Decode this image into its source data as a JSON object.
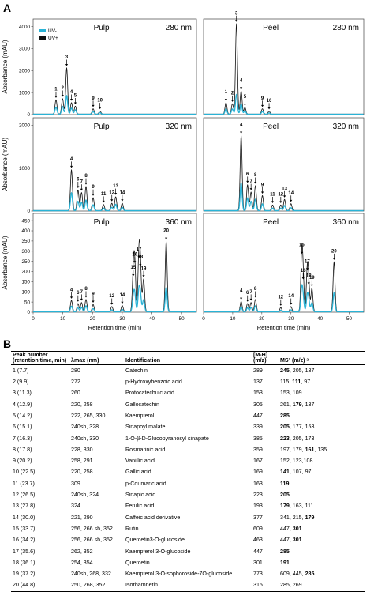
{
  "figure": {
    "panel_a_label": "A",
    "panel_b_label": "B"
  },
  "chart_data": {
    "type": "line",
    "y_axis_label": "Absorbance (mAU)",
    "x_axis_label": "Retention time (min)",
    "x_ticks": [
      "0",
      "10",
      "20",
      "30",
      "40",
      "50"
    ],
    "legend": [
      {
        "name": "UV-",
        "color": "#2ab3d6"
      },
      {
        "name": "UV+",
        "color": "#111111"
      }
    ],
    "panels": [
      {
        "title": "Pulp",
        "wavelength": "280 nm",
        "y_ticks": [
          "0",
          "1000",
          "2000",
          "3000",
          "4000"
        ],
        "ymax": 4200,
        "peaks": [
          {
            "label": "1",
            "x": 7.7,
            "uv_plus": 650,
            "uv_minus": 330
          },
          {
            "label": "2",
            "x": 9.9,
            "uv_plus": 700,
            "uv_minus": 360
          },
          {
            "label": "3",
            "x": 11.3,
            "uv_plus": 2100,
            "uv_minus": 850
          },
          {
            "label": "4",
            "x": 12.9,
            "uv_plus": 520,
            "uv_minus": 280
          },
          {
            "label": "5",
            "x": 14.2,
            "uv_plus": 360,
            "uv_minus": 200
          },
          {
            "label": "9",
            "x": 20.2,
            "uv_plus": 240,
            "uv_minus": 120
          },
          {
            "label": "10",
            "x": 22.5,
            "uv_plus": 140,
            "uv_minus": 70
          }
        ]
      },
      {
        "title": "Peel",
        "wavelength": "280 nm",
        "y_ticks": [
          "0",
          "1000",
          "2000",
          "3000",
          "4000"
        ],
        "ymax": 4200,
        "peaks": [
          {
            "label": "1",
            "x": 7.7,
            "uv_plus": 520,
            "uv_minus": 250
          },
          {
            "label": "2",
            "x": 9.9,
            "uv_plus": 470,
            "uv_minus": 240
          },
          {
            "label": "3",
            "x": 11.3,
            "uv_plus": 4100,
            "uv_minus": 900
          },
          {
            "label": "4",
            "x": 12.9,
            "uv_plus": 1050,
            "uv_minus": 480
          },
          {
            "label": "5",
            "x": 14.2,
            "uv_plus": 300,
            "uv_minus": 160
          },
          {
            "label": "9",
            "x": 20.2,
            "uv_plus": 240,
            "uv_minus": 120
          },
          {
            "label": "10",
            "x": 22.5,
            "uv_plus": 130,
            "uv_minus": 60
          }
        ]
      },
      {
        "title": "Pulp",
        "wavelength": "320 nm",
        "y_ticks": [
          "0",
          "1000",
          "2000"
        ],
        "ymax": 2100,
        "peaks": [
          {
            "label": "4",
            "x": 12.9,
            "uv_plus": 950,
            "uv_minus": 420
          },
          {
            "label": "6",
            "x": 15.1,
            "uv_plus": 480,
            "uv_minus": 220
          },
          {
            "label": "7",
            "x": 16.3,
            "uv_plus": 420,
            "uv_minus": 200
          },
          {
            "label": "8",
            "x": 17.8,
            "uv_plus": 560,
            "uv_minus": 250
          },
          {
            "label": "9",
            "x": 20.2,
            "uv_plus": 300,
            "uv_minus": 140
          },
          {
            "label": "11",
            "x": 23.7,
            "uv_plus": 140,
            "uv_minus": 60
          },
          {
            "label": "12",
            "x": 26.5,
            "uv_plus": 170,
            "uv_minus": 80
          },
          {
            "label": "13",
            "x": 27.8,
            "uv_plus": 320,
            "uv_minus": 150
          },
          {
            "label": "14",
            "x": 30.0,
            "uv_plus": 170,
            "uv_minus": 80
          }
        ]
      },
      {
        "title": "Peel",
        "wavelength": "320 nm",
        "y_ticks": [
          "0",
          "1000",
          "2000"
        ],
        "ymax": 2100,
        "peaks": [
          {
            "label": "4",
            "x": 12.9,
            "uv_plus": 1750,
            "uv_minus": 650
          },
          {
            "label": "6",
            "x": 15.1,
            "uv_plus": 600,
            "uv_minus": 300
          },
          {
            "label": "7",
            "x": 16.3,
            "uv_plus": 430,
            "uv_minus": 220
          },
          {
            "label": "8",
            "x": 17.8,
            "uv_plus": 580,
            "uv_minus": 270
          },
          {
            "label": "9",
            "x": 20.2,
            "uv_plus": 350,
            "uv_minus": 160
          },
          {
            "label": "11",
            "x": 23.7,
            "uv_plus": 130,
            "uv_minus": 60
          },
          {
            "label": "12",
            "x": 26.5,
            "uv_plus": 130,
            "uv_minus": 60
          },
          {
            "label": "13",
            "x": 27.8,
            "uv_plus": 260,
            "uv_minus": 120
          },
          {
            "label": "14",
            "x": 30.0,
            "uv_plus": 160,
            "uv_minus": 70
          }
        ]
      },
      {
        "title": "Pulp",
        "wavelength": "360 nm",
        "y_ticks": [
          "0",
          "50",
          "100",
          "150",
          "200",
          "250",
          "300",
          "350",
          "400",
          "450"
        ],
        "ymax": 470,
        "peaks": [
          {
            "label": "4",
            "x": 12.9,
            "uv_plus": 55,
            "uv_minus": 28
          },
          {
            "label": "6",
            "x": 15.1,
            "uv_plus": 40,
            "uv_minus": 20
          },
          {
            "label": "7",
            "x": 16.3,
            "uv_plus": 45,
            "uv_minus": 22
          },
          {
            "label": "8",
            "x": 17.8,
            "uv_plus": 60,
            "uv_minus": 30
          },
          {
            "label": "9",
            "x": 20.2,
            "uv_plus": 35,
            "uv_minus": 16
          },
          {
            "label": "12",
            "x": 26.5,
            "uv_plus": 25,
            "uv_minus": 10
          },
          {
            "label": "14",
            "x": 30.0,
            "uv_plus": 30,
            "uv_minus": 12
          },
          {
            "label": "15",
            "x": 33.7,
            "uv_plus": 165,
            "uv_minus": 60
          },
          {
            "label": "16",
            "x": 34.2,
            "uv_plus": 230,
            "uv_minus": 85
          },
          {
            "label": "17",
            "x": 35.6,
            "uv_plus": 255,
            "uv_minus": 95
          },
          {
            "label": "18",
            "x": 36.1,
            "uv_plus": 215,
            "uv_minus": 80
          },
          {
            "label": "19",
            "x": 37.2,
            "uv_plus": 160,
            "uv_minus": 60
          },
          {
            "label": "20",
            "x": 44.8,
            "uv_plus": 345,
            "uv_minus": 120
          }
        ]
      },
      {
        "title": "Peel",
        "wavelength": "360 nm",
        "y_ticks": [
          "0",
          "50",
          "100",
          "150",
          "200",
          "250",
          "300",
          "350",
          "400",
          "450"
        ],
        "ymax": 470,
        "peaks": [
          {
            "label": "4",
            "x": 12.9,
            "uv_plus": 50,
            "uv_minus": 25
          },
          {
            "label": "6",
            "x": 15.1,
            "uv_plus": 40,
            "uv_minus": 20
          },
          {
            "label": "7",
            "x": 16.3,
            "uv_plus": 45,
            "uv_minus": 22
          },
          {
            "label": "8",
            "x": 17.8,
            "uv_plus": 60,
            "uv_minus": 30
          },
          {
            "label": "12",
            "x": 26.5,
            "uv_plus": 20,
            "uv_minus": 8
          },
          {
            "label": "14",
            "x": 30.0,
            "uv_plus": 25,
            "uv_minus": 10
          },
          {
            "label": "15",
            "x": 33.7,
            "uv_plus": 275,
            "uv_minus": 110
          },
          {
            "label": "16",
            "x": 34.2,
            "uv_plus": 150,
            "uv_minus": 60
          },
          {
            "label": "17",
            "x": 35.6,
            "uv_plus": 195,
            "uv_minus": 75
          },
          {
            "label": "18",
            "x": 36.1,
            "uv_plus": 125,
            "uv_minus": 50
          },
          {
            "label": "19",
            "x": 37.2,
            "uv_plus": 115,
            "uv_minus": 45
          },
          {
            "label": "20",
            "x": 44.8,
            "uv_plus": 245,
            "uv_minus": 95
          }
        ]
      }
    ]
  },
  "table": {
    "headers": {
      "peak": "Peak number",
      "peak_sub": "(retention time, min)",
      "lambda": "λmax (nm)",
      "identification": "Identification",
      "mh": "[M-H]",
      "mh_sub": "(m/z)",
      "ms2": "MS² (m/z) ᵃ"
    },
    "rows": [
      {
        "peak": "1 (7.7)",
        "lambda": "280",
        "id": "Catechin",
        "mh": "289",
        "ms_bold": "245",
        "ms_rest": ", 205, 137"
      },
      {
        "peak": "2 (9.9)",
        "lambda": "272",
        "id": "p-Hydroxybenzoic acid",
        "mh": "137",
        "ms_pre": "115, ",
        "ms_bold": "111",
        "ms_rest": ", 97"
      },
      {
        "peak": "3 (11.3)",
        "lambda": "260",
        "id": "Protocatechuic acid",
        "mh": "153",
        "ms_rest": "153, 109"
      },
      {
        "peak": "4 (12.9)",
        "lambda": "220, 258",
        "id": "Gallocatechin",
        "mh": "305",
        "ms_pre": "261, ",
        "ms_bold": "179",
        "ms_rest": ", 137"
      },
      {
        "peak": "5 (14.2)",
        "lambda": "222, 265, 330",
        "id": "Kaempferol",
        "mh": "447",
        "ms_bold": "285"
      },
      {
        "peak": "6 (15.1)",
        "lambda": "240sh, 328",
        "id": "Sinapoyl malate",
        "mh": "339",
        "ms_bold": "205",
        "ms_rest": ", 177, 153"
      },
      {
        "peak": "7 (16.3)",
        "lambda": "240sh, 330",
        "id": "1-O-β-D-Glucopyranosyl sinapate",
        "mh": "385",
        "ms_bold": "223",
        "ms_rest": ", 205, 173"
      },
      {
        "peak": "8 (17.8)",
        "lambda": "228, 330",
        "id": "Rosmarinic acid",
        "mh": "359",
        "ms_pre": "197, 179, ",
        "ms_bold": "161",
        "ms_rest": ", 135"
      },
      {
        "peak": "9 (20.2)",
        "lambda": "258, 291",
        "id": "Vanillic acid",
        "mh": "167",
        "ms_rest": "152, 123,108"
      },
      {
        "peak": "10 (22.5)",
        "lambda": "220, 258",
        "id": "Gallic acid",
        "mh": "169",
        "ms_bold": "141",
        "ms_rest": ", 107, 97"
      },
      {
        "peak": "11 (23.7)",
        "lambda": "309",
        "id": "p-Coumaric acid",
        "mh": "163",
        "ms_bold": "119"
      },
      {
        "peak": "12 (26.5)",
        "lambda": "240sh, 324",
        "id": "Sinapic acid",
        "mh": "223",
        "ms_bold": "205"
      },
      {
        "peak": "13 (27.8)",
        "lambda": "324",
        "id": "Ferulic acid",
        "mh": "193",
        "ms_bold": "179",
        "ms_rest": ", 163, 111"
      },
      {
        "peak": "14 (30.0)",
        "lambda": "221, 290",
        "id": "Caffeic acid derivative",
        "mh": "377",
        "ms_pre": "341, 215, ",
        "ms_bold": "179"
      },
      {
        "peak": "15 (33.7)",
        "lambda": "256, 266 sh, 352",
        "id": "Rutin",
        "mh": "609",
        "ms_pre": "447, ",
        "ms_bold": "301"
      },
      {
        "peak": "16 (34.2)",
        "lambda": "256, 266 sh, 352",
        "id": "Quercetin3-O-glucoside",
        "mh": "463",
        "ms_pre": "447, ",
        "ms_bold": "301"
      },
      {
        "peak": "17 (35.6)",
        "lambda": "262, 352",
        "id": "Kaempferol 3-O-glucoside",
        "mh": "447",
        "ms_bold": "285"
      },
      {
        "peak": "18 (36.1)",
        "lambda": "254, 354",
        "id": "Quercetin",
        "mh": "301",
        "ms_bold": "191"
      },
      {
        "peak": "19 (37.2)",
        "lambda": "240sh, 268, 332",
        "id": "Kaempferol 3-O-sophoroside-7O-glucoside",
        "mh": "773",
        "ms_pre": "609, 445, ",
        "ms_bold": "285"
      },
      {
        "peak": "20 (44.8)",
        "lambda": "250, 268, 352",
        "id": "Isorhamnetin",
        "mh": "315",
        "ms_rest": "285, 269"
      }
    ]
  }
}
